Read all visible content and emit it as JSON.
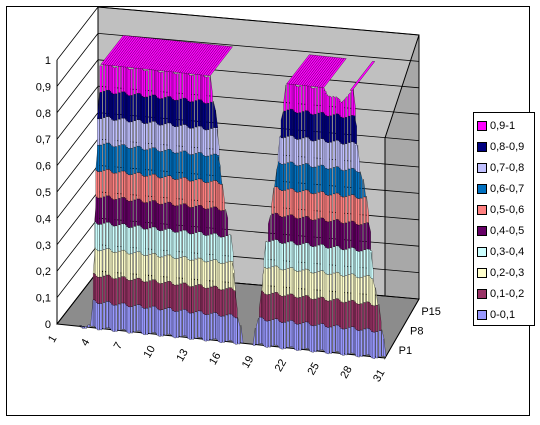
{
  "chart_data": {
    "type": "surface",
    "zlim": [
      0,
      1
    ],
    "z_ticks": [
      "0",
      "0,1",
      "0,2",
      "0,3",
      "0,4",
      "0,5",
      "0,6",
      "0,7",
      "0,8",
      "0,9",
      "1"
    ],
    "x_ticks": [
      "1",
      "4",
      "7",
      "10",
      "13",
      "16",
      "19",
      "22",
      "25",
      "28",
      "31"
    ],
    "y_ticks": [
      "P1",
      "P8",
      "P15"
    ],
    "x_range": [
      1,
      31
    ],
    "grid": true,
    "legend_position": "right",
    "legend": [
      {
        "label": "0,9-1",
        "color": "#ff00ff"
      },
      {
        "label": "0,8-0,9",
        "color": "#000080"
      },
      {
        "label": "0,7-0,8",
        "color": "#c0c0ff"
      },
      {
        "label": "0,6-0,7",
        "color": "#0070c0"
      },
      {
        "label": "0,5-0,6",
        "color": "#ff8080"
      },
      {
        "label": "0,4-0,5",
        "color": "#660066"
      },
      {
        "label": "0,3-0,4",
        "color": "#ccffff"
      },
      {
        "label": "0,2-0,3",
        "color": "#ffffcc"
      },
      {
        "label": "0,1-0,2",
        "color": "#993366"
      },
      {
        "label": "0-0,1",
        "color": "#9999ff"
      }
    ],
    "surface_profile_front": {
      "x": [
        1,
        3,
        4,
        5,
        8,
        9,
        12,
        14,
        15,
        18,
        19,
        22,
        24,
        25,
        27,
        28,
        31
      ],
      "z": [
        0,
        0,
        0.01,
        1,
        1,
        1,
        1,
        1,
        1,
        0,
        0,
        1,
        1,
        1,
        0.95,
        1,
        0
      ]
    }
  }
}
